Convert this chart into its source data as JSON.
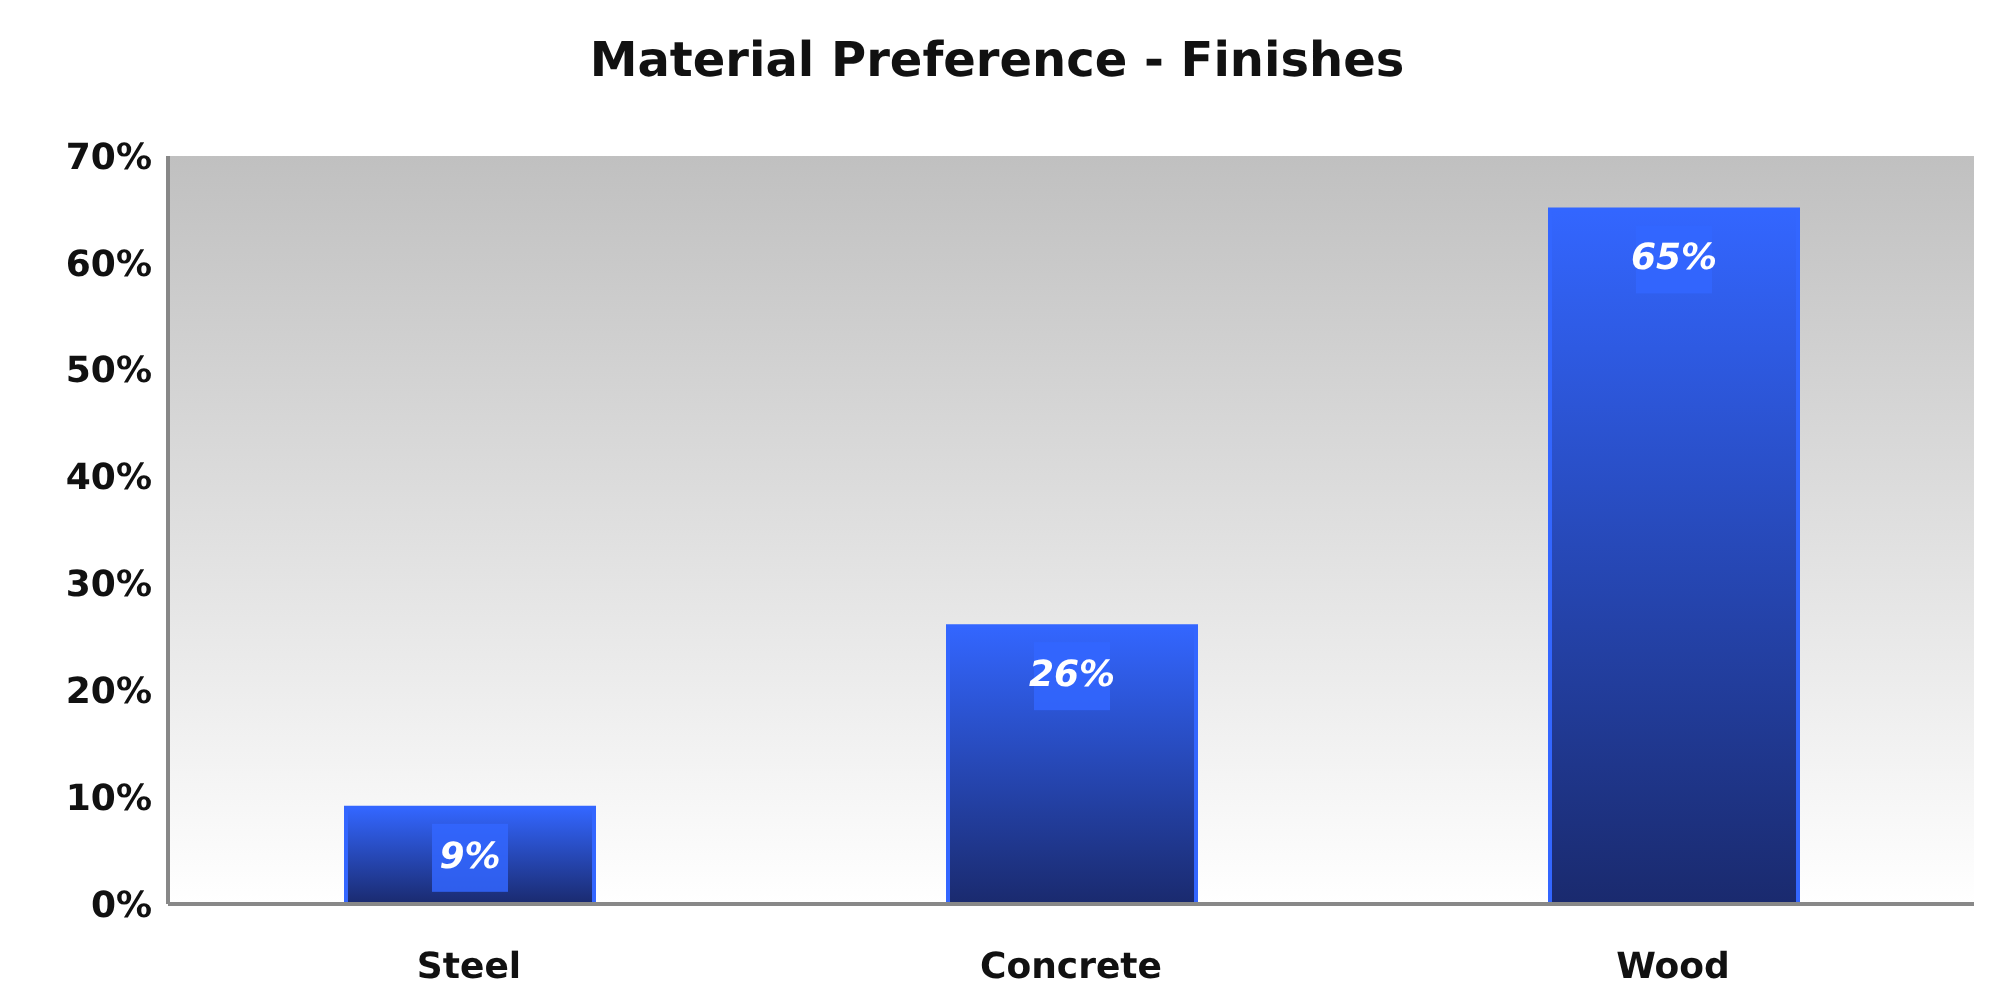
{
  "chart_data": {
    "type": "bar",
    "title": "Material Preference - Finishes",
    "categories": [
      "Steel",
      "Concrete",
      "Wood"
    ],
    "values": [
      9,
      26,
      65
    ],
    "color": "#3366ff",
    "ylim": [
      0,
      70
    ],
    "yticks": [
      {
        "value": 0,
        "label": "0%"
      },
      {
        "value": 10,
        "label": "10%"
      },
      {
        "value": 20,
        "label": "20%"
      },
      {
        "value": 30,
        "label": "30%"
      },
      {
        "value": 40,
        "label": "40%"
      },
      {
        "value": 50,
        "label": "50%"
      },
      {
        "value": 60,
        "label": "60%"
      },
      {
        "value": 70,
        "label": "70%"
      }
    ],
    "value_labels": [
      "9%",
      "26%",
      "65%"
    ]
  }
}
